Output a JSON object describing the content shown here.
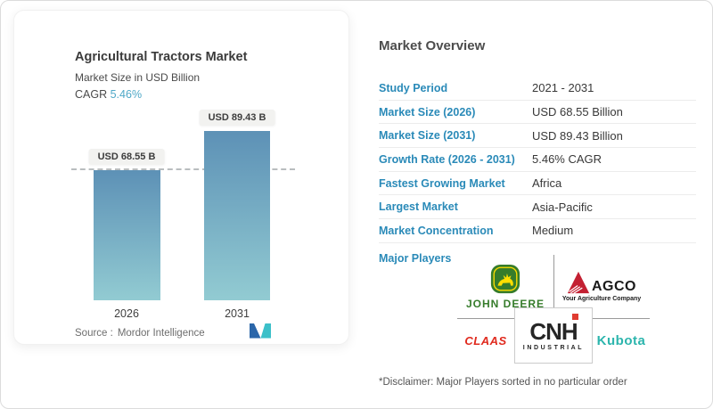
{
  "left_card": {
    "title": "Agricultural Tractors Market",
    "subtitle": "Market Size in USD Billion",
    "cagr_label": "CAGR",
    "cagr_value": "5.46%",
    "source_label": "Source :",
    "source_value": "Mordor Intelligence",
    "logo_name": "mordor-intelligence-m-logo"
  },
  "chart_data": {
    "type": "bar",
    "title": "Agricultural Tractors Market",
    "subtitle": "Market Size in USD Billion",
    "categories": [
      "2026",
      "2031"
    ],
    "values": [
      68.55,
      89.43
    ],
    "labels": [
      "USD 68.55 B",
      "USD 89.43 B"
    ],
    "ylabel": "USD Billion",
    "ylim": [
      0,
      100
    ],
    "grid": false,
    "reference_line_value": 68.55,
    "bar_gradient_top": "#5d91b6",
    "bar_gradient_bottom": "#92cbd2"
  },
  "overview": {
    "heading": "Market Overview",
    "rows": [
      {
        "label": "Study Period",
        "value": "2021 - 2031"
      },
      {
        "label": "Market Size (2026)",
        "value": "USD 68.55 Billion"
      },
      {
        "label": "Market Size (2031)",
        "value": "USD 89.43 Billion"
      },
      {
        "label": "Growth Rate (2026 - 2031)",
        "value": "5.46% CAGR"
      },
      {
        "label": "Fastest Growing Market",
        "value": "Africa"
      },
      {
        "label": "Largest Market",
        "value": "Asia-Pacific"
      },
      {
        "label": "Market Concentration",
        "value": "Medium"
      }
    ],
    "major_players_label": "Major Players",
    "disclaimer": "*Disclaimer: Major Players sorted in no particular order"
  },
  "logos": {
    "john_deere": {
      "text": "JOHN DEERE",
      "green": "#367c2b",
      "yellow": "#ffde00"
    },
    "agco": {
      "name": "AGCO",
      "tagline": "Your Agriculture Company",
      "red": "#c32032"
    },
    "claas": {
      "text": "CLAAS",
      "red": "#e02a1e"
    },
    "cnh": {
      "name": "CNH",
      "sub": "INDUSTRIAL",
      "red": "#e03c31"
    },
    "kubota": {
      "text": "Kubota",
      "teal": "#2cb5ad"
    }
  },
  "colors": {
    "label_blue": "#2a8ab8",
    "cagr_teal": "#4fa8c7",
    "separator": "#ececec",
    "dashed_line": "#b9bdbf"
  }
}
